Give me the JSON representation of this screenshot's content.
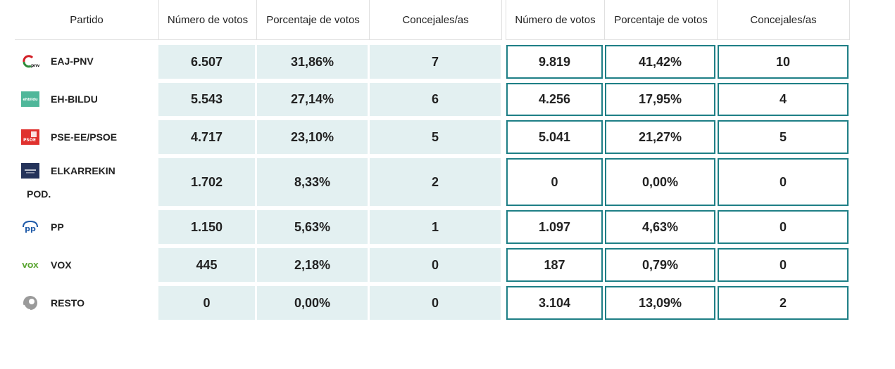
{
  "headers": {
    "party": "Partido",
    "votes_a": "Número de votos",
    "pct_a": "Porcentaje de votos",
    "seats_a": "Concejales/as",
    "votes_b": "Número de votos",
    "pct_b": "Porcentaje de votos",
    "seats_b": "Concejales/as"
  },
  "rows": [
    {
      "party": "EAJ-PNV",
      "logo": "eaj-pnv-logo",
      "votes_a": "6.507",
      "pct_a": "31,86%",
      "seats_a": "7",
      "votes_b": "9.819",
      "pct_b": "41,42%",
      "seats_b": "10"
    },
    {
      "party": "EH-BILDU",
      "logo": "eh-bildu-logo",
      "logo_text": "ehbildu",
      "votes_a": "5.543",
      "pct_a": "27,14%",
      "seats_a": "6",
      "votes_b": "4.256",
      "pct_b": "17,95%",
      "seats_b": "4"
    },
    {
      "party": "PSE-EE/PSOE",
      "logo": "psoe-logo",
      "logo_text": "PSOE",
      "votes_a": "4.717",
      "pct_a": "23,10%",
      "seats_a": "5",
      "votes_b": "5.041",
      "pct_b": "21,27%",
      "seats_b": "5"
    },
    {
      "party": "ELKARREKIN",
      "party_line2": "POD.",
      "logo": "elkarrekin-logo",
      "votes_a": "1.702",
      "pct_a": "8,33%",
      "seats_a": "2",
      "votes_b": "0",
      "pct_b": "0,00%",
      "seats_b": "0"
    },
    {
      "party": "PP",
      "logo": "pp-logo",
      "logo_text": "pp",
      "votes_a": "1.150",
      "pct_a": "5,63%",
      "seats_a": "1",
      "votes_b": "1.097",
      "pct_b": "4,63%",
      "seats_b": "0"
    },
    {
      "party": "VOX",
      "logo": "vox-logo",
      "logo_text": "VOX",
      "votes_a": "445",
      "pct_a": "2,18%",
      "seats_a": "0",
      "votes_b": "187",
      "pct_b": "0,79%",
      "seats_b": "0"
    },
    {
      "party": "RESTO",
      "logo": "resto-logo",
      "votes_a": "0",
      "pct_a": "0,00%",
      "seats_a": "0",
      "votes_b": "3.104",
      "pct_b": "13,09%",
      "seats_b": "2"
    }
  ],
  "colors": {
    "cell_fill": "#e3f0f1",
    "cell_border": "#1e7f86",
    "pnv_green": "#2e8b3a",
    "pnv_red": "#d21f26",
    "bildu_green": "#4fb79a",
    "psoe_red": "#e0312e",
    "elkarrekin_navy": "#24335a",
    "pp_blue": "#1f5aa8",
    "vox_green": "#5aa531",
    "resto_grey": "#9a9a9a"
  }
}
